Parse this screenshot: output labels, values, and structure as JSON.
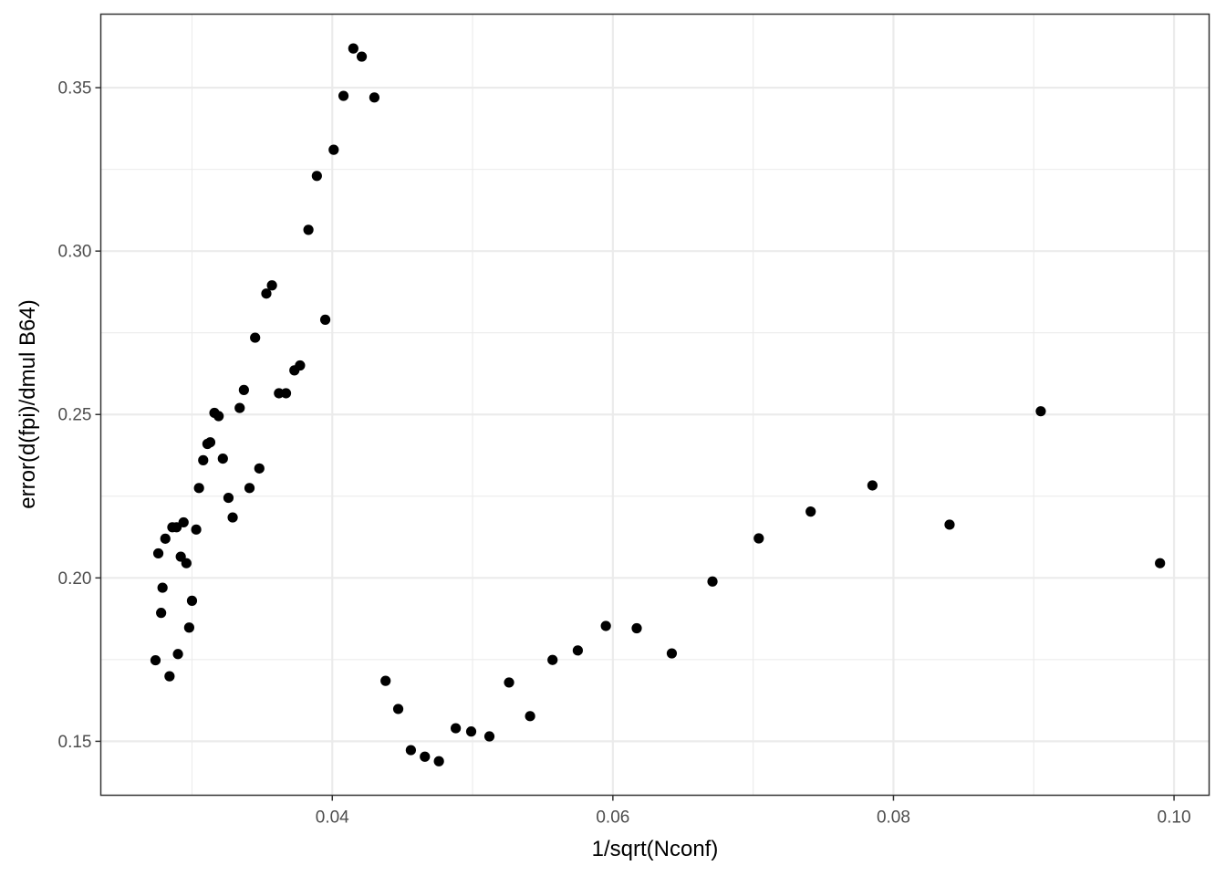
{
  "chart_data": {
    "type": "scatter",
    "title": "",
    "xlabel": "1/sqrt(Nconf)",
    "ylabel": "error(d(fpi)/dmul B64)",
    "xlim": [
      0.0235,
      0.1025
    ],
    "ylim": [
      0.1335,
      0.3725
    ],
    "x_ticks": [
      0.04,
      0.06,
      0.08,
      0.1
    ],
    "x_tick_labels": [
      "0.04",
      "0.06",
      "0.08",
      "0.10"
    ],
    "x_minor": [
      0.03,
      0.05,
      0.07,
      0.09
    ],
    "y_ticks": [
      0.15,
      0.2,
      0.25,
      0.3,
      0.35
    ],
    "y_tick_labels": [
      "0.15",
      "0.20",
      "0.25",
      "0.30",
      "0.35"
    ],
    "y_minor": [
      0.175,
      0.225,
      0.275,
      0.325
    ],
    "grid": true,
    "point_color": "#000000",
    "points": [
      [
        0.0415,
        0.362
      ],
      [
        0.0421,
        0.3595
      ],
      [
        0.0408,
        0.3475
      ],
      [
        0.043,
        0.347
      ],
      [
        0.0401,
        0.331
      ],
      [
        0.0389,
        0.323
      ],
      [
        0.0383,
        0.3065
      ],
      [
        0.0357,
        0.2895
      ],
      [
        0.0353,
        0.287
      ],
      [
        0.0395,
        0.279
      ],
      [
        0.0345,
        0.2735
      ],
      [
        0.0377,
        0.265
      ],
      [
        0.0373,
        0.2635
      ],
      [
        0.0362,
        0.2565
      ],
      [
        0.0367,
        0.2565
      ],
      [
        0.0337,
        0.2575
      ],
      [
        0.0334,
        0.252
      ],
      [
        0.0316,
        0.2505
      ],
      [
        0.0319,
        0.2495
      ],
      [
        0.0313,
        0.2415
      ],
      [
        0.0311,
        0.241
      ],
      [
        0.0322,
        0.2365
      ],
      [
        0.0308,
        0.236
      ],
      [
        0.0348,
        0.2335
      ],
      [
        0.0305,
        0.2275
      ],
      [
        0.0341,
        0.2275
      ],
      [
        0.0326,
        0.2245
      ],
      [
        0.0329,
        0.2185
      ],
      [
        0.0294,
        0.217
      ],
      [
        0.0286,
        0.2155
      ],
      [
        0.0289,
        0.2155
      ],
      [
        0.0303,
        0.2148
      ],
      [
        0.0281,
        0.212
      ],
      [
        0.0276,
        0.2075
      ],
      [
        0.0292,
        0.2065
      ],
      [
        0.0296,
        0.2045
      ],
      [
        0.0279,
        0.197
      ],
      [
        0.03,
        0.193
      ],
      [
        0.0278,
        0.1893
      ],
      [
        0.0298,
        0.1848
      ],
      [
        0.029,
        0.1767
      ],
      [
        0.0274,
        0.1748
      ],
      [
        0.0284,
        0.1699
      ],
      [
        0.0438,
        0.1685
      ],
      [
        0.0447,
        0.1599
      ],
      [
        0.0456,
        0.1473
      ],
      [
        0.0466,
        0.1453
      ],
      [
        0.0476,
        0.1439
      ],
      [
        0.0488,
        0.154
      ],
      [
        0.0499,
        0.153
      ],
      [
        0.0512,
        0.1515
      ],
      [
        0.0526,
        0.168
      ],
      [
        0.0541,
        0.1577
      ],
      [
        0.0557,
        0.1749
      ],
      [
        0.0575,
        0.1778
      ],
      [
        0.0595,
        0.1853
      ],
      [
        0.0617,
        0.1846
      ],
      [
        0.0642,
        0.1769
      ],
      [
        0.0671,
        0.1989
      ],
      [
        0.0704,
        0.2121
      ],
      [
        0.0741,
        0.2203
      ],
      [
        0.0785,
        0.2283
      ],
      [
        0.084,
        0.2163
      ],
      [
        0.0905,
        0.251
      ],
      [
        0.099,
        0.2045
      ]
    ]
  }
}
